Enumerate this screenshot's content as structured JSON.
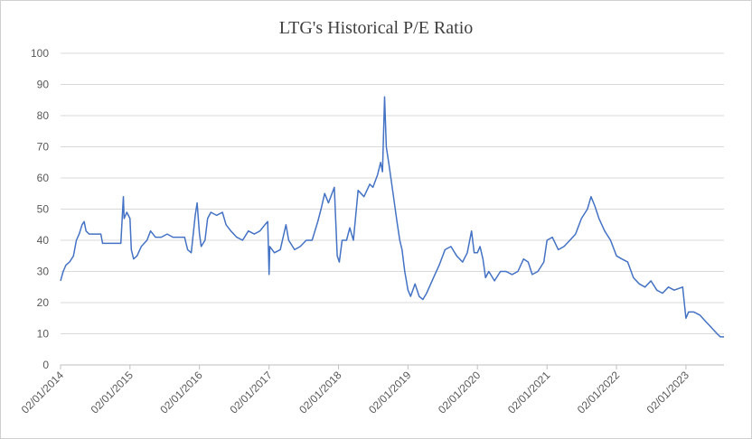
{
  "chart_data": {
    "type": "line",
    "title": "LTG's Historical  P/E Ratio",
    "xlabel": "",
    "ylabel": "",
    "ylim": [
      0,
      100
    ],
    "y_ticks": [
      "0",
      "10",
      "20",
      "30",
      "40",
      "50",
      "60",
      "70",
      "80",
      "90",
      "100"
    ],
    "x_range": [
      "2014-02-01",
      "2023-08-20"
    ],
    "x_ticks": [
      {
        "date": "2014-02-01",
        "label": "02/01/2014"
      },
      {
        "date": "2015-02-01",
        "label": "02/01/2015"
      },
      {
        "date": "2016-02-01",
        "label": "02/01/2016"
      },
      {
        "date": "2017-02-01",
        "label": "02/01/2017"
      },
      {
        "date": "2018-02-01",
        "label": "02/01/2018"
      },
      {
        "date": "2019-02-01",
        "label": "02/01/2019"
      },
      {
        "date": "2020-02-01",
        "label": "02/01/2020"
      },
      {
        "date": "2021-02-01",
        "label": "02/01/2021"
      },
      {
        "date": "2022-02-01",
        "label": "02/01/2022"
      },
      {
        "date": "2023-02-01",
        "label": "02/01/2023"
      }
    ],
    "grid": true,
    "legend": "none",
    "series": [
      {
        "color": "#4472C4",
        "points": [
          [
            "2014-02-01",
            27
          ],
          [
            "2014-02-15",
            30
          ],
          [
            "2014-03-01",
            32
          ],
          [
            "2014-03-20",
            33
          ],
          [
            "2014-04-10",
            35
          ],
          [
            "2014-04-25",
            40
          ],
          [
            "2014-05-10",
            42
          ],
          [
            "2014-05-25",
            45
          ],
          [
            "2014-06-05",
            46
          ],
          [
            "2014-06-15",
            43
          ],
          [
            "2014-07-01",
            42
          ],
          [
            "2014-08-01",
            42
          ],
          [
            "2014-09-01",
            42
          ],
          [
            "2014-09-10",
            39
          ],
          [
            "2014-10-01",
            39
          ],
          [
            "2014-11-01",
            39
          ],
          [
            "2014-12-15",
            39
          ],
          [
            "2014-12-28",
            54
          ],
          [
            "2015-01-01",
            47
          ],
          [
            "2015-01-15",
            49
          ],
          [
            "2015-02-01",
            47
          ],
          [
            "2015-02-08",
            37
          ],
          [
            "2015-02-20",
            34
          ],
          [
            "2015-03-10",
            35
          ],
          [
            "2015-04-01",
            38
          ],
          [
            "2015-05-01",
            40
          ],
          [
            "2015-05-20",
            43
          ],
          [
            "2015-06-15",
            41
          ],
          [
            "2015-07-15",
            41
          ],
          [
            "2015-08-15",
            42
          ],
          [
            "2015-09-15",
            41
          ],
          [
            "2015-10-15",
            41
          ],
          [
            "2015-11-15",
            41
          ],
          [
            "2015-12-01",
            37
          ],
          [
            "2015-12-20",
            36
          ],
          [
            "2016-01-10",
            48
          ],
          [
            "2016-01-20",
            52
          ],
          [
            "2016-02-01",
            42
          ],
          [
            "2016-02-10",
            38
          ],
          [
            "2016-03-01",
            40
          ],
          [
            "2016-03-15",
            47
          ],
          [
            "2016-04-01",
            49
          ],
          [
            "2016-05-01",
            48
          ],
          [
            "2016-06-01",
            49
          ],
          [
            "2016-06-20",
            45
          ],
          [
            "2016-07-15",
            43
          ],
          [
            "2016-08-15",
            41
          ],
          [
            "2016-09-15",
            40
          ],
          [
            "2016-10-15",
            43
          ],
          [
            "2016-11-15",
            42
          ],
          [
            "2016-12-15",
            43
          ],
          [
            "2017-01-10",
            45
          ],
          [
            "2017-01-25",
            46
          ],
          [
            "2017-02-01",
            29
          ],
          [
            "2017-02-05",
            38
          ],
          [
            "2017-03-01",
            36
          ],
          [
            "2017-04-01",
            37
          ],
          [
            "2017-05-01",
            45
          ],
          [
            "2017-05-15",
            40
          ],
          [
            "2017-06-15",
            37
          ],
          [
            "2017-07-15",
            38
          ],
          [
            "2017-08-15",
            40
          ],
          [
            "2017-09-15",
            40
          ],
          [
            "2017-10-15",
            46
          ],
          [
            "2017-11-01",
            50
          ],
          [
            "2017-11-20",
            55
          ],
          [
            "2017-12-10",
            52
          ],
          [
            "2018-01-10",
            57
          ],
          [
            "2018-01-25",
            35
          ],
          [
            "2018-02-05",
            33
          ],
          [
            "2018-02-20",
            40
          ],
          [
            "2018-03-15",
            40
          ],
          [
            "2018-04-01",
            44
          ],
          [
            "2018-04-20",
            40
          ],
          [
            "2018-05-15",
            56
          ],
          [
            "2018-06-15",
            54
          ],
          [
            "2018-07-15",
            58
          ],
          [
            "2018-08-01",
            57
          ],
          [
            "2018-08-25",
            61
          ],
          [
            "2018-09-10",
            65
          ],
          [
            "2018-09-20",
            62
          ],
          [
            "2018-10-01",
            86
          ],
          [
            "2018-10-10",
            70
          ],
          [
            "2018-10-25",
            64
          ],
          [
            "2018-11-15",
            55
          ],
          [
            "2018-12-05",
            46
          ],
          [
            "2018-12-20",
            40
          ],
          [
            "2019-01-01",
            37
          ],
          [
            "2019-01-15",
            30
          ],
          [
            "2019-02-01",
            24
          ],
          [
            "2019-02-15",
            22
          ],
          [
            "2019-03-10",
            26
          ],
          [
            "2019-04-01",
            22
          ],
          [
            "2019-04-20",
            21
          ],
          [
            "2019-05-10",
            23
          ],
          [
            "2019-06-15",
            28
          ],
          [
            "2019-07-15",
            32
          ],
          [
            "2019-08-15",
            37
          ],
          [
            "2019-09-15",
            38
          ],
          [
            "2019-10-15",
            35
          ],
          [
            "2019-11-15",
            33
          ],
          [
            "2019-12-10",
            36
          ],
          [
            "2020-01-01",
            43
          ],
          [
            "2020-01-15",
            36
          ],
          [
            "2020-02-01",
            36
          ],
          [
            "2020-02-15",
            38
          ],
          [
            "2020-03-01",
            34
          ],
          [
            "2020-03-15",
            28
          ],
          [
            "2020-04-01",
            30
          ],
          [
            "2020-05-01",
            27
          ],
          [
            "2020-06-01",
            30
          ],
          [
            "2020-07-01",
            30
          ],
          [
            "2020-08-01",
            29
          ],
          [
            "2020-09-01",
            30
          ],
          [
            "2020-10-01",
            34
          ],
          [
            "2020-10-25",
            33
          ],
          [
            "2020-11-15",
            29
          ],
          [
            "2020-12-15",
            30
          ],
          [
            "2021-01-15",
            33
          ],
          [
            "2021-02-01",
            40
          ],
          [
            "2021-03-01",
            41
          ],
          [
            "2021-04-01",
            37
          ],
          [
            "2021-05-01",
            38
          ],
          [
            "2021-06-01",
            40
          ],
          [
            "2021-07-01",
            42
          ],
          [
            "2021-08-01",
            47
          ],
          [
            "2021-09-01",
            50
          ],
          [
            "2021-09-20",
            54
          ],
          [
            "2021-10-10",
            51
          ],
          [
            "2021-11-01",
            47
          ],
          [
            "2021-12-01",
            43
          ],
          [
            "2022-01-01",
            40
          ],
          [
            "2022-02-01",
            35
          ],
          [
            "2022-03-01",
            34
          ],
          [
            "2022-04-01",
            33
          ],
          [
            "2022-05-01",
            28
          ],
          [
            "2022-06-01",
            26
          ],
          [
            "2022-07-01",
            25
          ],
          [
            "2022-08-01",
            27
          ],
          [
            "2022-09-01",
            24
          ],
          [
            "2022-10-01",
            23
          ],
          [
            "2022-11-01",
            25
          ],
          [
            "2022-12-01",
            24
          ],
          [
            "2023-01-15",
            25
          ],
          [
            "2023-02-01",
            15
          ],
          [
            "2023-02-15",
            17
          ],
          [
            "2023-03-15",
            17
          ],
          [
            "2023-04-15",
            16
          ],
          [
            "2023-05-15",
            14
          ],
          [
            "2023-06-15",
            12
          ],
          [
            "2023-07-15",
            10
          ],
          [
            "2023-08-01",
            9
          ],
          [
            "2023-08-20",
            9
          ]
        ]
      }
    ]
  }
}
